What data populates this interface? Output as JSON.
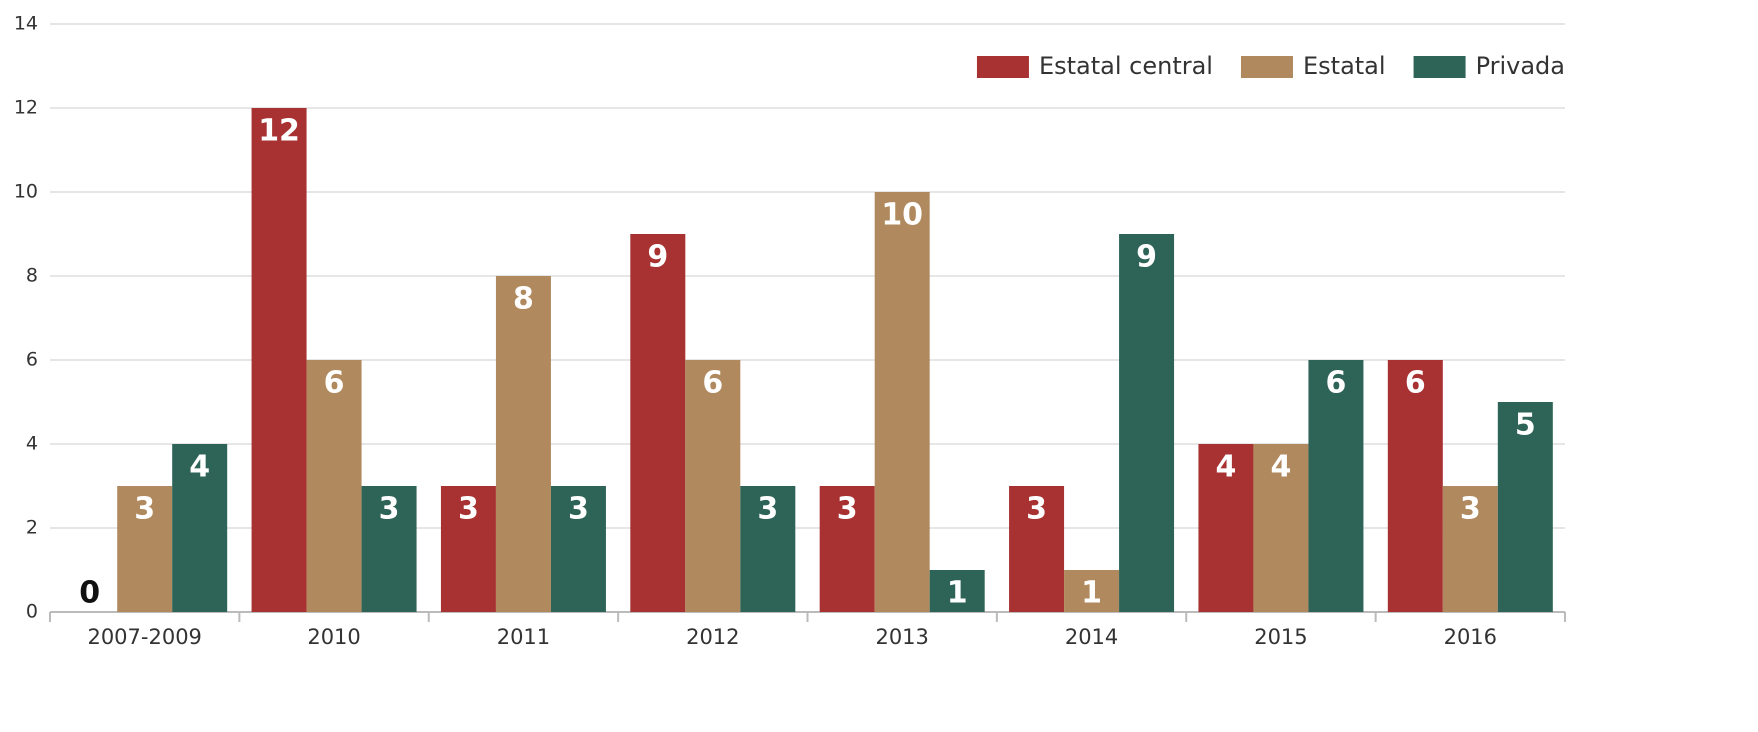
{
  "chart_data": {
    "type": "bar",
    "categories": [
      "2007-2009",
      "2010",
      "2011",
      "2012",
      "2013",
      "2014",
      "2015",
      "2016"
    ],
    "series": [
      {
        "name": "Estatal central",
        "color": "#a83232",
        "values": [
          0,
          12,
          3,
          9,
          3,
          3,
          4,
          6
        ]
      },
      {
        "name": "Estatal",
        "color": "#b08a5e",
        "values": [
          3,
          6,
          8,
          6,
          10,
          1,
          4,
          3
        ]
      },
      {
        "name": "Privada",
        "color": "#2e6357",
        "values": [
          4,
          3,
          3,
          3,
          1,
          9,
          6,
          5
        ]
      }
    ],
    "ylim": [
      0,
      14
    ],
    "yticks": [
      0,
      2,
      4,
      6,
      8,
      10,
      12,
      14
    ],
    "grid": true,
    "legend": "top-right"
  }
}
